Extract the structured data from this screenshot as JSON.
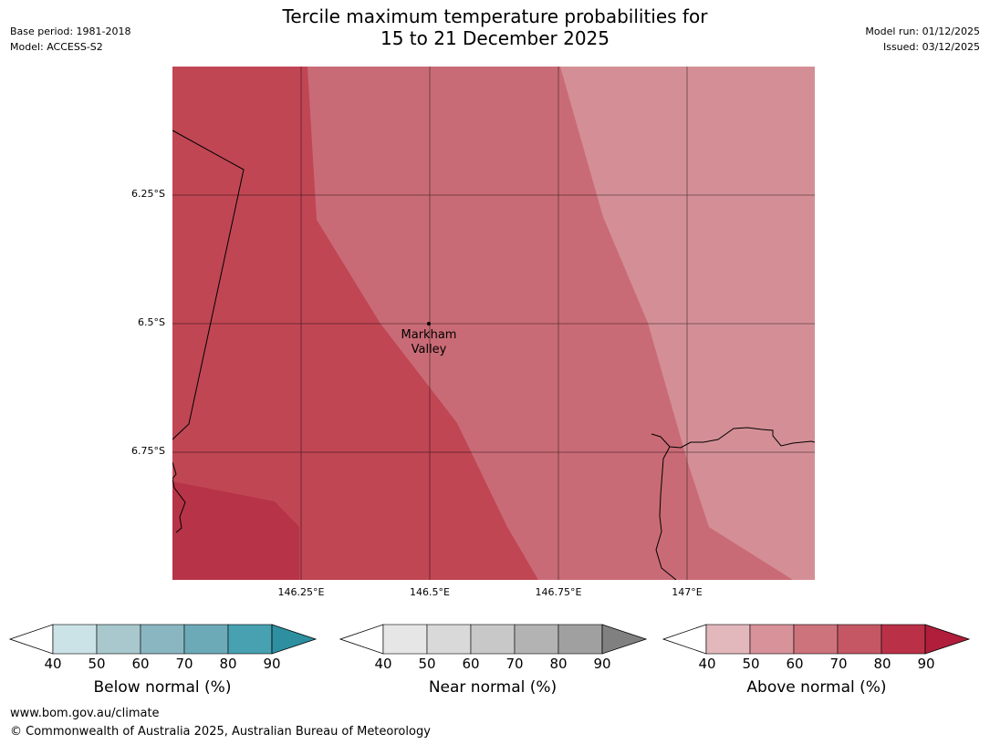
{
  "header": {
    "title_line1": "Tercile maximum temperature probabilities for",
    "title_line2": "15 to 21 December 2025",
    "base_period": "Base period: 1981-2018",
    "model": "Model: ACCESS-S2",
    "model_run": "Model run: 01/12/2025",
    "issued": "Issued: 03/12/2025"
  },
  "map": {
    "place_label_line1": "Markham",
    "place_label_line2": "Valley",
    "lat_labels": [
      "6.25°S",
      "6.5°S",
      "6.75°S"
    ],
    "lon_labels": [
      "146.25°E",
      "146.5°E",
      "146.75°E",
      "147°E"
    ],
    "zone_colors": {
      "above_90": "#b73347",
      "above_80": "#c04654",
      "above_70": "#c96b76",
      "above_60": "#d48f96"
    }
  },
  "colorbars": [
    {
      "name": "Below normal (%)",
      "ticks": [
        "40",
        "50",
        "60",
        "70",
        "80",
        "90"
      ],
      "colors": [
        "#ffffff",
        "#cbe2e6",
        "#a8c8cd",
        "#8ab6c1",
        "#6daab8",
        "#48a1b1",
        "#2d8fa0"
      ]
    },
    {
      "name": "Near normal (%)",
      "ticks": [
        "40",
        "50",
        "60",
        "70",
        "80",
        "90"
      ],
      "colors": [
        "#ffffff",
        "#e6e6e6",
        "#d9d9d9",
        "#c8c8c8",
        "#b3b3b3",
        "#a0a0a0",
        "#808080"
      ]
    },
    {
      "name": "Above normal (%)",
      "ticks": [
        "40",
        "50",
        "60",
        "70",
        "80",
        "90"
      ],
      "colors": [
        "#ffffff",
        "#e3b8bd",
        "#d7929a",
        "#cd737c",
        "#c55765",
        "#ba3147",
        "#b01e3c"
      ]
    }
  ],
  "footer": {
    "url": "www.bom.gov.au/climate",
    "copyright": "© Commonwealth of Australia 2025, Australian Bureau of Meteorology"
  }
}
